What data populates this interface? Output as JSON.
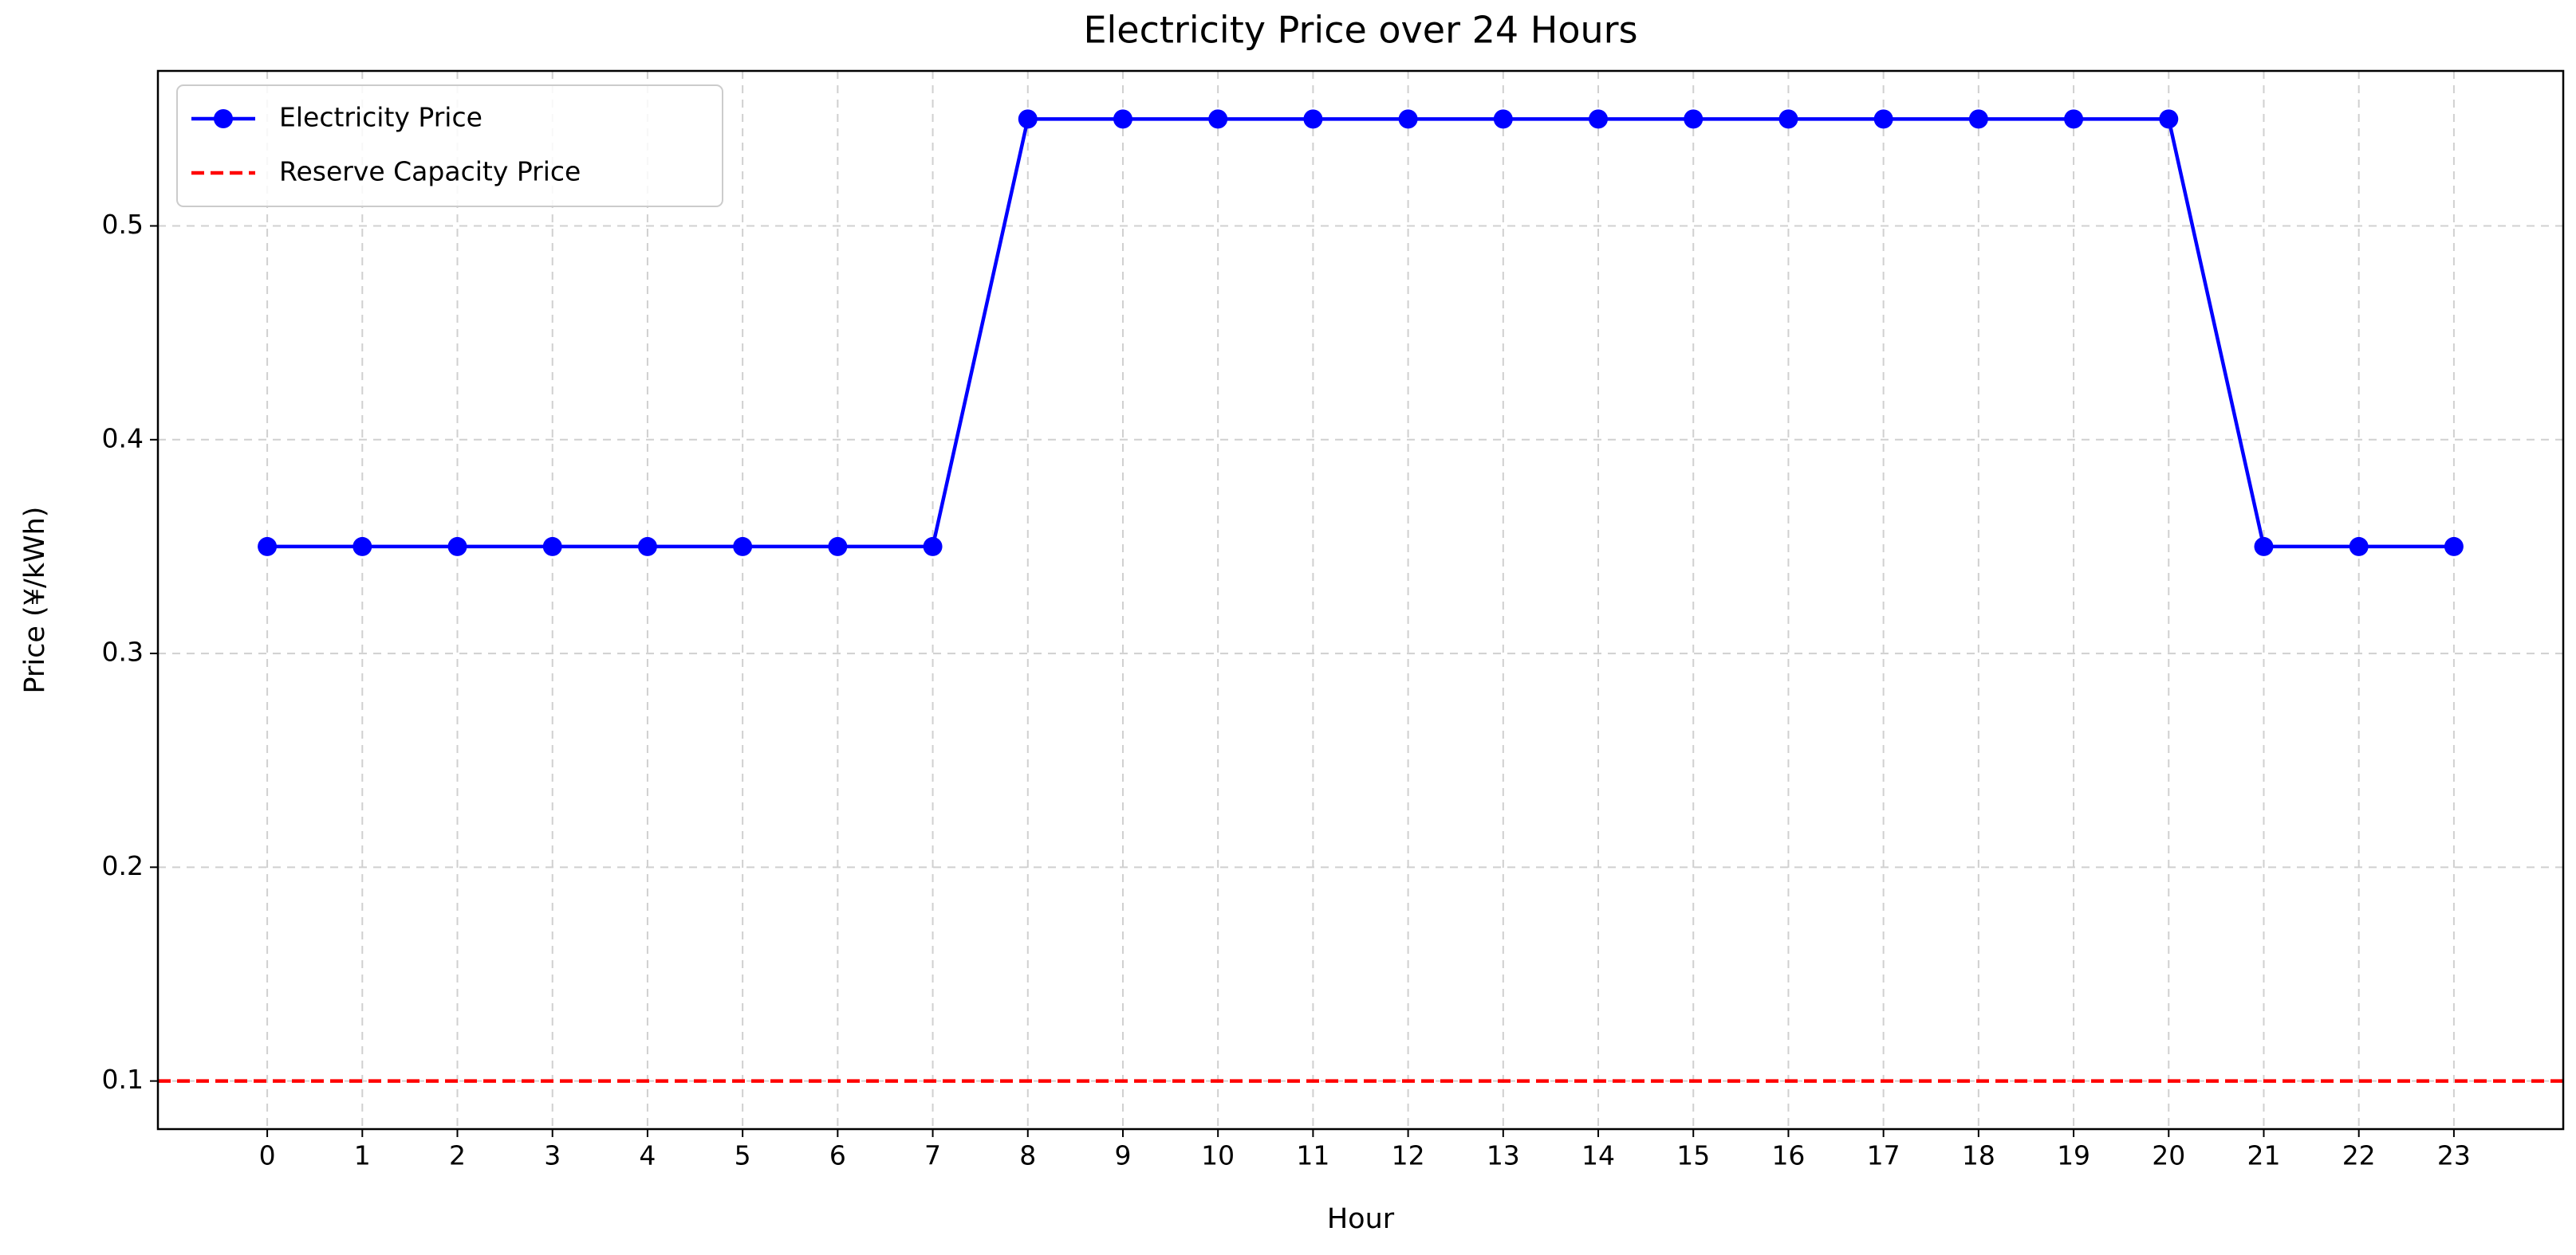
{
  "chart_data": {
    "type": "line",
    "title": "Electricity Price over 24 Hours",
    "x_label": "Hour",
    "y_label": "Price (¥/kWh)",
    "x": [
      0,
      1,
      2,
      3,
      4,
      5,
      6,
      7,
      8,
      9,
      10,
      11,
      12,
      13,
      14,
      15,
      16,
      17,
      18,
      19,
      20,
      21,
      22,
      23
    ],
    "series": [
      {
        "name": "Electricity Price",
        "color": "#0000ff",
        "values": [
          0.35,
          0.35,
          0.35,
          0.35,
          0.35,
          0.35,
          0.35,
          0.35,
          0.55,
          0.55,
          0.55,
          0.55,
          0.55,
          0.55,
          0.55,
          0.55,
          0.55,
          0.55,
          0.55,
          0.55,
          0.55,
          0.35,
          0.35,
          0.35
        ]
      }
    ],
    "hlines": [
      {
        "name": "Reserve Capacity Price",
        "color": "#ff0000",
        "value": 0.1,
        "style": "dashed"
      }
    ],
    "xlim": [
      -1.15,
      24.15
    ],
    "ylim": [
      0.0775,
      0.5725
    ],
    "xticks": [
      0,
      1,
      2,
      3,
      4,
      5,
      6,
      7,
      8,
      9,
      10,
      11,
      12,
      13,
      14,
      15,
      16,
      17,
      18,
      19,
      20,
      21,
      22,
      23
    ],
    "yticks": [
      0.1,
      0.2,
      0.3,
      0.4,
      0.5
    ],
    "grid": true,
    "legend": "upper left"
  }
}
